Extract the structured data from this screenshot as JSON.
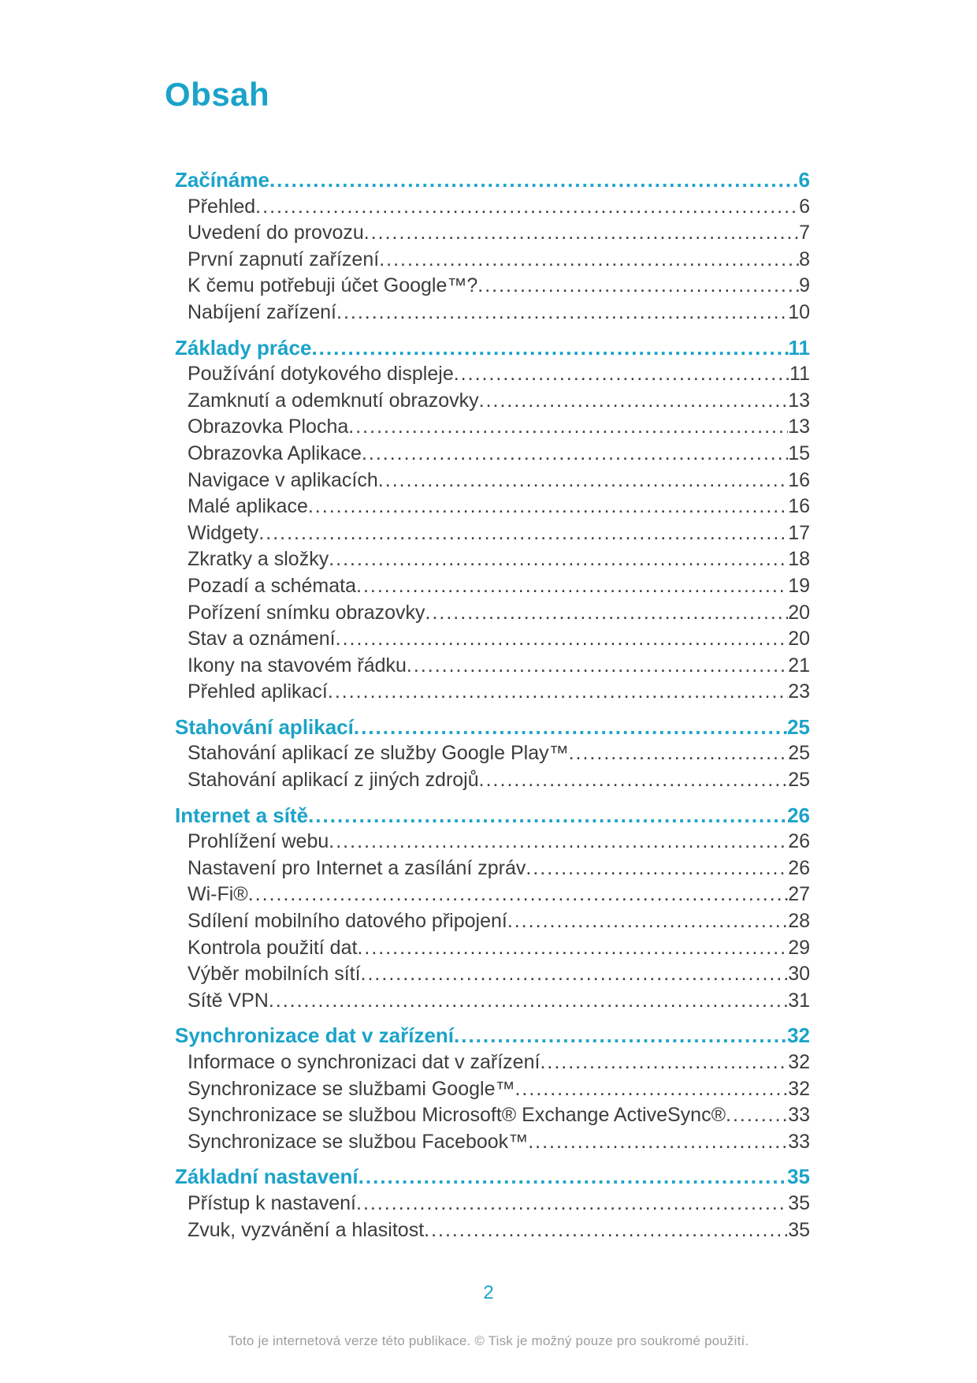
{
  "title": "Obsah",
  "accent_color": "#1ba3c9",
  "text_color": "#3c3c3c",
  "sections": [
    {
      "label": "Začínáme",
      "page": "6",
      "entries": [
        {
          "label": "Přehled",
          "page": "6"
        },
        {
          "label": "Uvedení do provozu",
          "page": "7"
        },
        {
          "label": "První zapnutí zařízení",
          "page": "8"
        },
        {
          "label": "K čemu potřebuji účet Google™?",
          "page": "9"
        },
        {
          "label": "Nabíjení zařízení",
          "page": "10"
        }
      ]
    },
    {
      "label": "Základy práce",
      "page": "11",
      "entries": [
        {
          "label": "Používání dotykového displeje",
          "page": "11"
        },
        {
          "label": "Zamknutí a odemknutí obrazovky",
          "page": "13"
        },
        {
          "label": "Obrazovka Plocha",
          "page": "13"
        },
        {
          "label": "Obrazovka Aplikace",
          "page": "15"
        },
        {
          "label": "Navigace v aplikacích",
          "page": "16"
        },
        {
          "label": "Malé aplikace",
          "page": "16"
        },
        {
          "label": "Widgety",
          "page": "17"
        },
        {
          "label": "Zkratky a složky",
          "page": "18"
        },
        {
          "label": "Pozadí a schémata",
          "page": "19"
        },
        {
          "label": "Pořízení snímku obrazovky",
          "page": "20"
        },
        {
          "label": "Stav a oznámení",
          "page": "20"
        },
        {
          "label": "Ikony na stavovém řádku",
          "page": "21"
        },
        {
          "label": "Přehled aplikací",
          "page": "23"
        }
      ]
    },
    {
      "label": "Stahování aplikací",
      "page": "25",
      "entries": [
        {
          "label": "Stahování aplikací ze služby Google Play™",
          "page": "25"
        },
        {
          "label": "Stahování aplikací z jiných zdrojů",
          "page": "25"
        }
      ]
    },
    {
      "label": "Internet a sítě",
      "page": "26",
      "entries": [
        {
          "label": "Prohlížení webu",
          "page": "26"
        },
        {
          "label": "Nastavení pro Internet a zasílání zpráv",
          "page": "26"
        },
        {
          "label": "Wi-Fi®",
          "page": "27"
        },
        {
          "label": "Sdílení mobilního datového připojení",
          "page": "28"
        },
        {
          "label": "Kontrola použití dat",
          "page": "29"
        },
        {
          "label": "Výběr mobilních sítí",
          "page": "30"
        },
        {
          "label": "Sítě VPN",
          "page": "31"
        }
      ]
    },
    {
      "label": "Synchronizace dat v zařízení",
      "page": "32",
      "entries": [
        {
          "label": "Informace o synchronizaci dat v zařízení",
          "page": "32"
        },
        {
          "label": "Synchronizace se službami Google™",
          "page": "32"
        },
        {
          "label": "Synchronizace se službou Microsoft® Exchange ActiveSync®",
          "page": "33"
        },
        {
          "label": "Synchronizace se službou Facebook™",
          "page": "33"
        }
      ]
    },
    {
      "label": "Základní nastavení",
      "page": "35",
      "entries": [
        {
          "label": "Přístup k nastavení",
          "page": "35"
        },
        {
          "label": "Zvuk, vyzvánění a hlasitost",
          "page": "35"
        }
      ]
    }
  ],
  "footer": {
    "page_number": "2",
    "note": "Toto je internetová verze této publikace. © Tisk je možný pouze pro soukromé použití."
  }
}
